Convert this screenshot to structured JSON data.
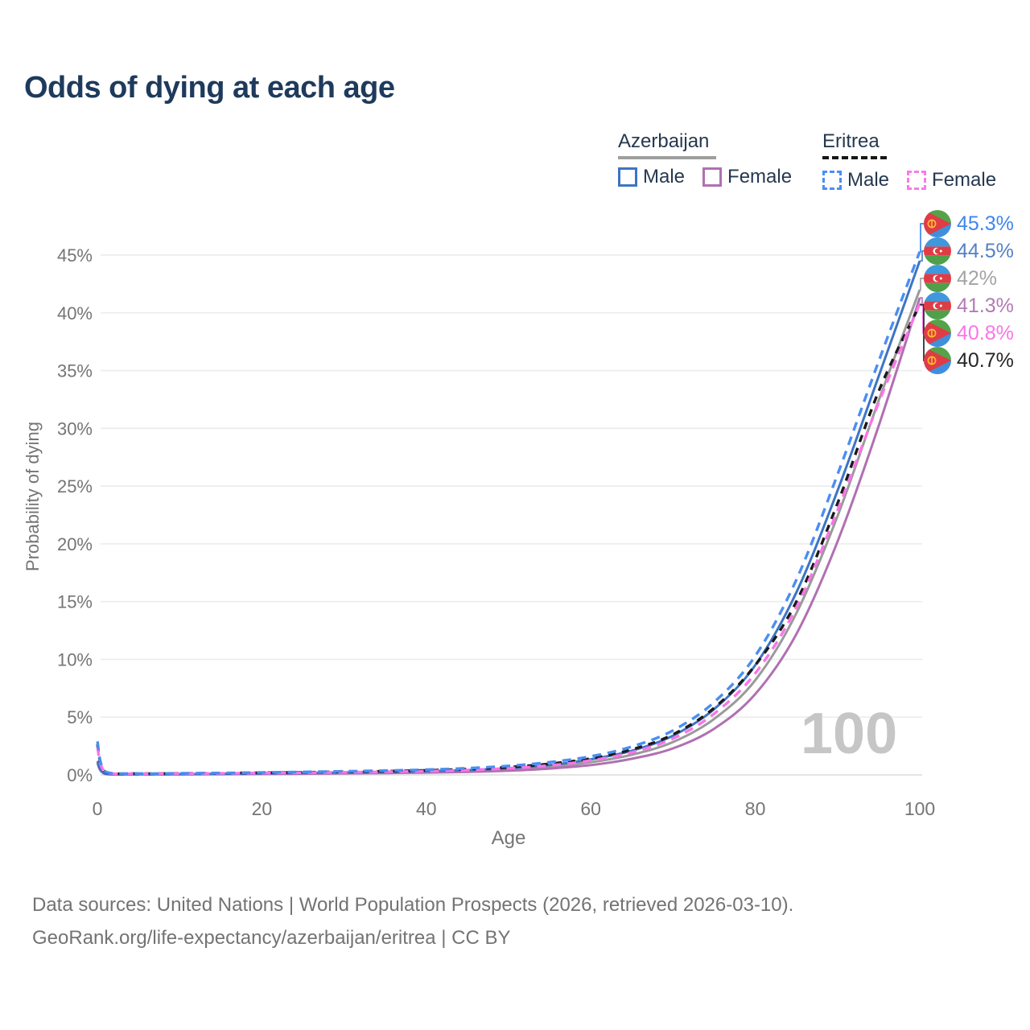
{
  "title": "Odds of dying at each age",
  "watermark_age": "100",
  "legend": {
    "groups": [
      {
        "name": "Azerbaijan",
        "line_style": "solid",
        "underline_color": "#9e9e9e",
        "items": [
          {
            "label": "Male",
            "color": "#3d74c4",
            "dashed": false
          },
          {
            "label": "Female",
            "color": "#b070b2",
            "dashed": false
          }
        ]
      },
      {
        "name": "Eritrea",
        "line_style": "dashed",
        "underline_color": "#161616",
        "items": [
          {
            "label": "Male",
            "color": "#4a8ef2",
            "dashed": true
          },
          {
            "label": "Female",
            "color": "#fb7ae9",
            "dashed": true
          }
        ]
      }
    ]
  },
  "chart_data": {
    "type": "line",
    "title": "Odds of dying at each age",
    "xlabel": "Age",
    "ylabel": "Probability of dying",
    "xlim": [
      0,
      100
    ],
    "ylim_percent": [
      0,
      47
    ],
    "xticks": [
      0,
      20,
      40,
      60,
      80,
      100
    ],
    "yticks_percent": [
      0,
      5,
      10,
      15,
      20,
      25,
      30,
      35,
      40,
      45
    ],
    "grid": true,
    "legend_position": "top-right",
    "ages": [
      0,
      1,
      5,
      10,
      15,
      20,
      25,
      30,
      35,
      40,
      45,
      50,
      55,
      60,
      65,
      70,
      75,
      80,
      85,
      90,
      95,
      100
    ],
    "series": [
      {
        "name": "Azerbaijan Both sexes",
        "country": "azerbaijan",
        "sex": "both",
        "color": "#9a9a9a",
        "dashed": false,
        "values_percent": [
          1.1,
          0.09,
          0.05,
          0.055,
          0.08,
          0.11,
          0.14,
          0.17,
          0.21,
          0.26,
          0.34,
          0.47,
          0.7,
          1.1,
          1.75,
          2.85,
          4.85,
          8.2,
          14.0,
          22.4,
          32.4,
          42.0
        ]
      },
      {
        "name": "Azerbaijan Female",
        "country": "azerbaijan",
        "sex": "female",
        "color": "#b070b2",
        "dashed": false,
        "values_percent": [
          1.0,
          0.08,
          0.04,
          0.05,
          0.06,
          0.08,
          0.1,
          0.13,
          0.16,
          0.2,
          0.26,
          0.36,
          0.55,
          0.85,
          1.4,
          2.3,
          4.0,
          7.0,
          12.2,
          20.2,
          30.2,
          41.3
        ]
      },
      {
        "name": "Azerbaijan Male",
        "country": "azerbaijan",
        "sex": "male",
        "color": "#3d74c4",
        "dashed": false,
        "values_percent": [
          1.2,
          0.1,
          0.05,
          0.06,
          0.09,
          0.13,
          0.17,
          0.21,
          0.26,
          0.32,
          0.42,
          0.58,
          0.85,
          1.35,
          2.1,
          3.4,
          5.7,
          9.5,
          15.8,
          24.6,
          34.5,
          44.5
        ]
      },
      {
        "name": "Eritrea Both sexes",
        "country": "eritrea",
        "sex": "both",
        "color": "#1a1a1a",
        "dashed": true,
        "values_percent": [
          2.65,
          0.26,
          0.11,
          0.125,
          0.15,
          0.185,
          0.22,
          0.27,
          0.32,
          0.39,
          0.5,
          0.67,
          0.96,
          1.42,
          2.2,
          3.5,
          5.8,
          9.5,
          15.0,
          23.5,
          33.2,
          40.7
        ]
      },
      {
        "name": "Eritrea Female",
        "country": "eritrea",
        "sex": "female",
        "color": "#fb74e8",
        "dashed": true,
        "values_percent": [
          2.4,
          0.24,
          0.1,
          0.11,
          0.13,
          0.16,
          0.19,
          0.23,
          0.27,
          0.33,
          0.42,
          0.57,
          0.82,
          1.25,
          1.95,
          3.15,
          5.3,
          8.8,
          14.5,
          22.9,
          32.2,
          40.8
        ]
      },
      {
        "name": "Eritrea Male",
        "country": "eritrea",
        "sex": "male",
        "color": "#4a8ef2",
        "dashed": true,
        "values_percent": [
          2.9,
          0.28,
          0.12,
          0.14,
          0.17,
          0.21,
          0.26,
          0.31,
          0.37,
          0.45,
          0.58,
          0.78,
          1.1,
          1.6,
          2.45,
          3.85,
          6.3,
          10.3,
          16.9,
          26.0,
          35.8,
          45.3
        ]
      }
    ],
    "end_labels": [
      {
        "value_label": "45.3%",
        "country": "eritrea",
        "series": "Eritrea Male",
        "color": "#3d86f0",
        "end_percent": 45.3
      },
      {
        "value_label": "44.5%",
        "country": "azerbaijan",
        "series": "Azerbaijan Male",
        "color": "#5380c4",
        "end_percent": 44.5
      },
      {
        "value_label": "42%",
        "country": "azerbaijan",
        "series": "Azerbaijan Both sexes",
        "color": "#a3a3a3",
        "end_percent": 42
      },
      {
        "value_label": "41.3%",
        "country": "azerbaijan",
        "series": "Azerbaijan Female",
        "color": "#b37ab3",
        "end_percent": 41.3
      },
      {
        "value_label": "40.8%",
        "country": "eritrea",
        "series": "Eritrea Female",
        "color": "#fb74e8",
        "end_percent": 40.8
      },
      {
        "value_label": "40.7%",
        "country": "eritrea",
        "series": "Eritrea Both sexes",
        "color": "#262626",
        "end_percent": 40.7
      }
    ]
  },
  "footer": {
    "line1": "Data sources: United Nations | World Population Prospects (2026, retrieved 2026-03-10).",
    "line2": "GeoRank.org/life-expectancy/azerbaijan/eritrea | CC BY"
  }
}
